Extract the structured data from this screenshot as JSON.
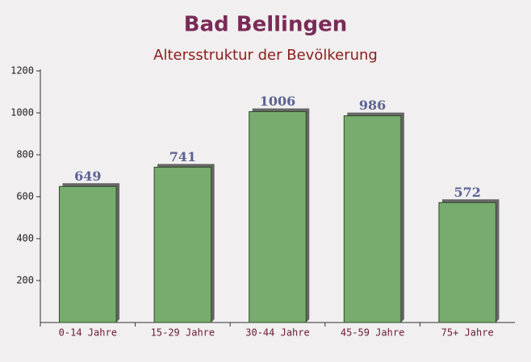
{
  "chart_data": {
    "type": "bar",
    "title": "Bad Bellingen",
    "subtitle": "Altersstruktur der Bevölkerung",
    "categories": [
      "0-14 Jahre",
      "15-29 Jahre",
      "30-44 Jahre",
      "45-59 Jahre",
      "75+ Jahre"
    ],
    "values": [
      649,
      741,
      1006,
      986,
      572
    ],
    "color": "#6aa35f",
    "ylim": [
      0,
      1200
    ],
    "yticks": [
      200,
      400,
      600,
      800,
      1000,
      1200
    ],
    "grid": false
  }
}
